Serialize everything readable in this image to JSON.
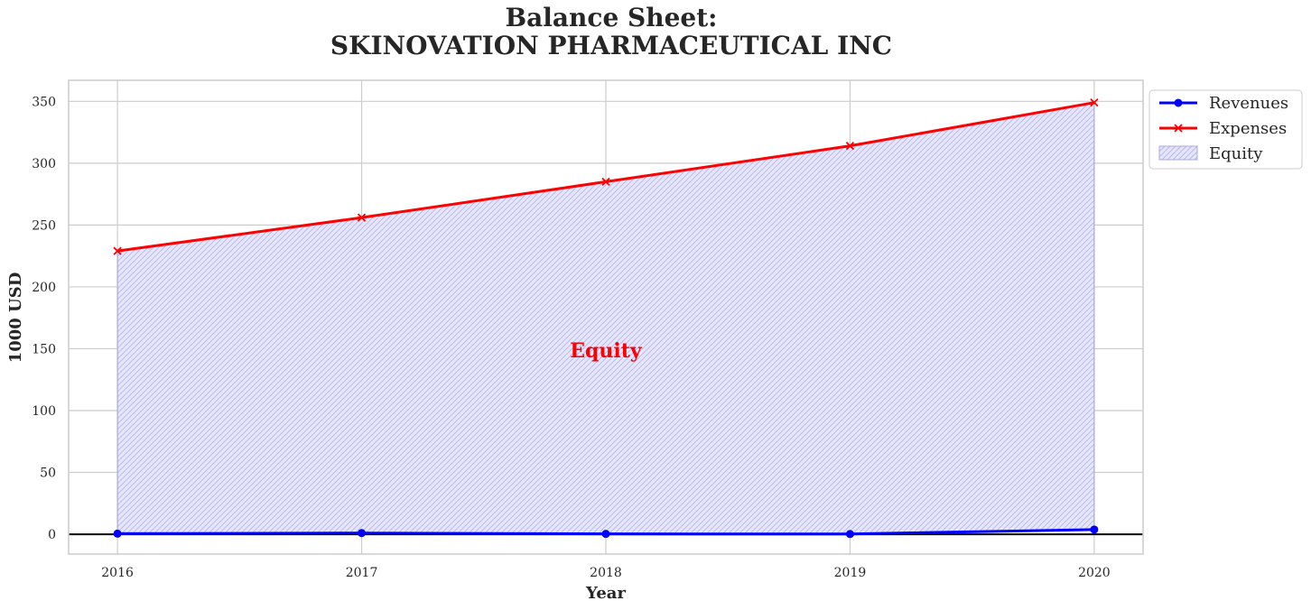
{
  "chart_data": {
    "type": "line",
    "title_line1": "Balance Sheet:",
    "title_line2": "SKINOVATION PHARMACEUTICAL INC",
    "xlabel": "Year",
    "ylabel": "1000 USD",
    "x": [
      2016,
      2017,
      2018,
      2019,
      2020
    ],
    "x_tick_labels": [
      "2016",
      "2017",
      "2018",
      "2019",
      "2020"
    ],
    "y_ticks": [
      0,
      50,
      100,
      150,
      200,
      250,
      300,
      350
    ],
    "y_tick_labels": [
      "0",
      "50",
      "100",
      "150",
      "200",
      "250",
      "300",
      "350"
    ],
    "xlim": [
      2015.8,
      2020.2
    ],
    "ylim": [
      -16,
      367
    ],
    "grid": true,
    "legend_position": "outside-top-right",
    "series": [
      {
        "name": "Revenues",
        "values": [
          0.5,
          1.0,
          0.3,
          0.2,
          3.8
        ],
        "color": "#0000ff",
        "marker": "circle"
      },
      {
        "name": "Expenses",
        "values": [
          229,
          256,
          285,
          314,
          349
        ],
        "color": "#ff0000",
        "marker": "x"
      }
    ],
    "area": {
      "name": "Equity",
      "between": [
        "Revenues",
        "Expenses"
      ],
      "fill": "#e5e5ff",
      "hatch": "#b3b3f2",
      "edge": "#aaaad6"
    },
    "annotation": {
      "text": "Equity",
      "x": 2018,
      "y": 143,
      "color": "#ff0000"
    },
    "baseline": {
      "y": 0,
      "color": "#000000"
    }
  }
}
